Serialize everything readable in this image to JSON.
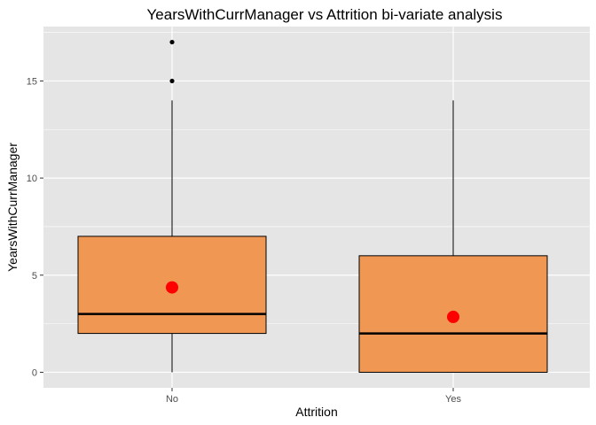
{
  "chart_data": {
    "type": "boxplot",
    "title": "YearsWithCurrManager vs Attrition bi-variate analysis",
    "xlabel": "Attrition",
    "ylabel": "YearsWithCurrManager",
    "categories": [
      "No",
      "Yes"
    ],
    "ylim": [
      -0.8,
      17.8
    ],
    "yticks": [
      0,
      5,
      10,
      15
    ],
    "grid": true,
    "colors": {
      "panel": "#e5e5e5",
      "grid": "#ffffff",
      "box_fill": "#f09753",
      "box_stroke": "#000000",
      "mean_point": "#ff0000",
      "outlier": "#000000"
    },
    "boxes": [
      {
        "category": "No",
        "whisker_low": 0,
        "q1": 2,
        "median": 3,
        "q3": 7,
        "whisker_high": 14,
        "mean": 4.37,
        "outliers": [
          15,
          17
        ]
      },
      {
        "category": "Yes",
        "whisker_low": 0,
        "q1": 0,
        "median": 2,
        "q3": 6,
        "whisker_high": 14,
        "mean": 2.85,
        "outliers": []
      }
    ]
  }
}
